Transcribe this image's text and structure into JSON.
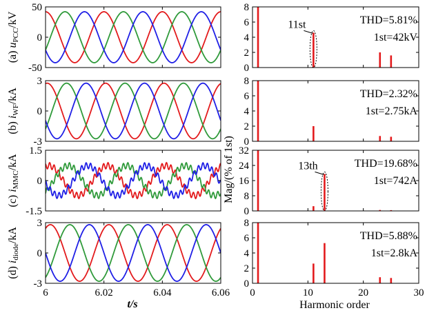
{
  "figure": {
    "x_label_time": "t/s",
    "x_label_harm": "Harmonic order",
    "y_label_harm": "Mag/(% of 1st)",
    "time_ticks": [
      "6",
      "6.02",
      "6.04",
      "6.06"
    ],
    "harm_ticks": [
      "0",
      "10",
      "20",
      "30"
    ]
  },
  "colors": {
    "phase_a": "#e31a1c",
    "phase_b": "#2f9a3a",
    "phase_c": "#1f1fe6",
    "bars": "#e31a1c"
  },
  "chart_data": [
    {
      "type": "line",
      "panel": "(a)",
      "ylabel_prefix": "(a) ",
      "ylabel_var": "u",
      "ylabel_sub": "PCC",
      "ylabel_unit": "/kV",
      "xlim": [
        6,
        6.06
      ],
      "ylim": [
        -50,
        50
      ],
      "yticks": [
        "50",
        "0",
        "-50"
      ],
      "frequency_hz": 50,
      "amplitude": 42,
      "ripple_amplitude": 0,
      "ripple_harmonic": 0,
      "series": [
        {
          "phase_deg": 90
        },
        {
          "phase_deg": -30
        },
        {
          "phase_deg": 210
        }
      ]
    },
    {
      "type": "bar",
      "panel": "(a)",
      "xlim": [
        0,
        30
      ],
      "ylim": [
        0,
        8
      ],
      "yticks": [
        "8",
        "6",
        "4",
        "2",
        "0"
      ],
      "x": [
        1,
        11,
        23,
        25
      ],
      "values": [
        8,
        4.6,
        2,
        1.6
      ],
      "thd": "THD=5.81%",
      "fundamental": "1st=42kV",
      "annotation": {
        "label": "11st",
        "harmonic": 11
      }
    },
    {
      "type": "line",
      "panel": "(b)",
      "ylabel_prefix": "(b) ",
      "ylabel_var": "i",
      "ylabel_sub": "WF",
      "ylabel_unit": "/kA",
      "xlim": [
        6,
        6.06
      ],
      "ylim": [
        -3,
        3
      ],
      "yticks": [
        "3",
        "0",
        "-3"
      ],
      "frequency_hz": 50,
      "amplitude": 2.75,
      "ripple_amplitude": 0,
      "ripple_harmonic": 0,
      "series": [
        {
          "phase_deg": 80
        },
        {
          "phase_deg": -40
        },
        {
          "phase_deg": 200
        }
      ]
    },
    {
      "type": "bar",
      "panel": "(b)",
      "xlim": [
        0,
        30
      ],
      "ylim": [
        0,
        8
      ],
      "yticks": [
        "8",
        "6",
        "4",
        "2",
        "0"
      ],
      "x": [
        1,
        11,
        23,
        25
      ],
      "values": [
        8,
        2,
        0.7,
        0.6
      ],
      "thd": "THD=2.32%",
      "fundamental": "1st=2.75kA"
    },
    {
      "type": "line",
      "panel": "(c)",
      "ylabel_prefix": "(c) ",
      "ylabel_var": "i",
      "ylabel_sub": "MMC",
      "ylabel_unit": "/kA",
      "xlim": [
        6,
        6.06
      ],
      "ylim": [
        -1.5,
        1.5
      ],
      "yticks": [
        "1.5",
        "0",
        "-1.5"
      ],
      "frequency_hz": 50,
      "amplitude": 0.74,
      "ripple_amplitude": 0.15,
      "ripple_harmonic": 13,
      "series": [
        {
          "phase_deg": 70
        },
        {
          "phase_deg": -50
        },
        {
          "phase_deg": 190
        }
      ]
    },
    {
      "type": "bar",
      "panel": "(c)",
      "xlim": [
        0,
        30
      ],
      "ylim": [
        0,
        32
      ],
      "yticks": [
        "32",
        "24",
        "16",
        "8",
        "0"
      ],
      "x": [
        1,
        11,
        13,
        23,
        25
      ],
      "values": [
        32,
        2.5,
        19.5,
        0.5,
        0.4
      ],
      "thd": "THD=19.68%",
      "fundamental": "1st=742A",
      "annotation": {
        "label": "13th",
        "harmonic": 13
      }
    },
    {
      "type": "line",
      "panel": "(d)",
      "ylabel_prefix": "(d) ",
      "ylabel_var": "i",
      "ylabel_sub": "diode",
      "ylabel_unit": "/kA",
      "xlim": [
        6,
        6.06
      ],
      "ylim": [
        -3,
        3
      ],
      "yticks": [
        "3",
        "0",
        "-3"
      ],
      "frequency_hz": 50,
      "amplitude": 2.8,
      "ripple_amplitude": 0,
      "ripple_harmonic": 0,
      "series": [
        {
          "phase_deg": 60
        },
        {
          "phase_deg": -60
        },
        {
          "phase_deg": 180
        }
      ]
    },
    {
      "type": "bar",
      "panel": "(d)",
      "xlim": [
        0,
        30
      ],
      "ylim": [
        0,
        8
      ],
      "yticks": [
        "8",
        "6",
        "4",
        "2",
        "0"
      ],
      "x": [
        1,
        11,
        13,
        23,
        25
      ],
      "values": [
        8,
        2.6,
        5.3,
        0.8,
        0.7
      ],
      "thd": "THD=5.88%",
      "fundamental": "1st=2.8kA"
    }
  ]
}
